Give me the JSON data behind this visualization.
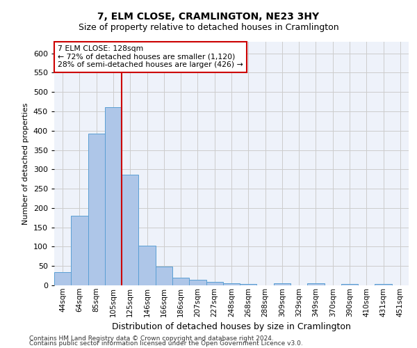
{
  "title": "7, ELM CLOSE, CRAMLINGTON, NE23 3HY",
  "subtitle": "Size of property relative to detached houses in Cramlington",
  "xlabel": "Distribution of detached houses by size in Cramlington",
  "ylabel": "Number of detached properties",
  "footnote1": "Contains HM Land Registry data © Crown copyright and database right 2024.",
  "footnote2": "Contains public sector information licensed under the Open Government Licence v3.0.",
  "categories": [
    "44sqm",
    "64sqm",
    "85sqm",
    "105sqm",
    "125sqm",
    "146sqm",
    "166sqm",
    "186sqm",
    "207sqm",
    "227sqm",
    "248sqm",
    "268sqm",
    "288sqm",
    "309sqm",
    "329sqm",
    "349sqm",
    "370sqm",
    "390sqm",
    "410sqm",
    "431sqm",
    "451sqm"
  ],
  "values": [
    35,
    180,
    393,
    460,
    287,
    102,
    49,
    20,
    14,
    9,
    5,
    4,
    0,
    5,
    0,
    5,
    0,
    4,
    0,
    4,
    0
  ],
  "bar_color": "#aec6e8",
  "bar_edge_color": "#5a9fd4",
  "redline_label": "7 ELM CLOSE: 128sqm",
  "annotation_line1": "← 72% of detached houses are smaller (1,120)",
  "annotation_line2": "28% of semi-detached houses are larger (426) →",
  "annotation_box_color": "#ffffff",
  "annotation_box_edge": "#cc0000",
  "redline_color": "#cc0000",
  "redline_x": 3.5,
  "ylim": [
    0,
    630
  ],
  "ytick_interval": 50,
  "grid_color": "#cccccc",
  "background_color": "#eef2fa",
  "title_fontsize": 10,
  "subtitle_fontsize": 9,
  "ylabel_fontsize": 8,
  "xlabel_fontsize": 9,
  "tick_fontsize": 8,
  "xtick_fontsize": 7.5,
  "footnote_fontsize": 6.5
}
